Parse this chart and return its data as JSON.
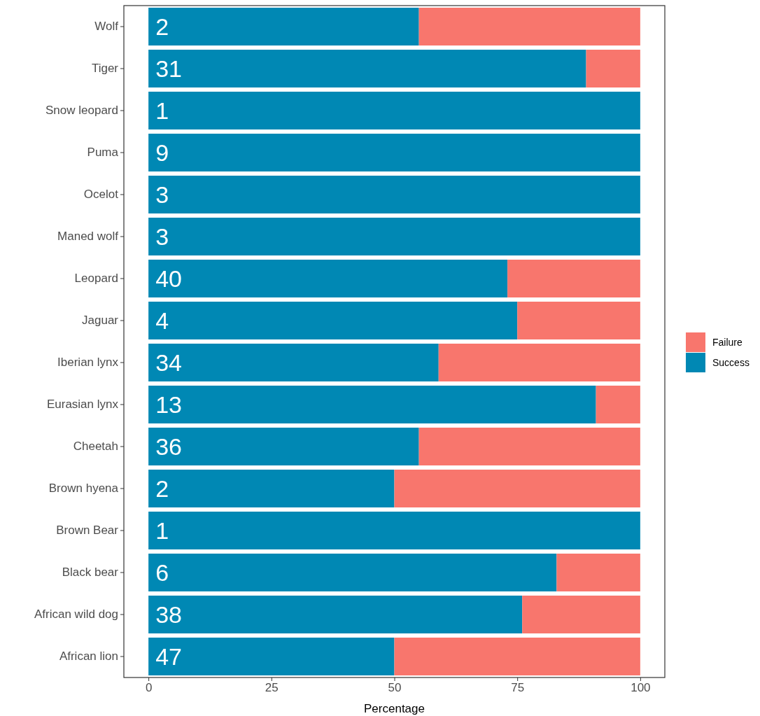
{
  "chart_data": {
    "type": "bar",
    "orientation": "horizontal",
    "stacked": true,
    "xlabel": "Percentage",
    "categories": [
      "Wolf",
      "Tiger",
      "Snow leopard",
      "Puma",
      "Ocelot",
      "Maned wolf",
      "Leopard",
      "Jaguar",
      "Iberian lynx",
      "Eurasian lynx",
      "Cheetah",
      "Brown hyena",
      "Brown Bear",
      "Black bear",
      "African wild dog",
      "African lion"
    ],
    "series": [
      {
        "name": "Success",
        "color": "#0088b4",
        "values": [
          55,
          89,
          100,
          100,
          100,
          100,
          73,
          75,
          59,
          91,
          55,
          50,
          100,
          83,
          76,
          50
        ]
      },
      {
        "name": "Failure",
        "color": "#f8766d",
        "values": [
          45,
          11,
          0,
          0,
          0,
          0,
          27,
          25,
          41,
          9,
          45,
          50,
          0,
          17,
          24,
          50
        ]
      }
    ],
    "xlim": [
      -5,
      105
    ],
    "xticks": [
      0,
      25,
      50,
      75,
      100
    ],
    "grid": false,
    "legend": "right",
    "annotations": [
      {
        "text": "2",
        "y": "Wolf"
      },
      {
        "text": "31",
        "y": "Tiger"
      },
      {
        "text": "1",
        "y": "Snow leopard"
      },
      {
        "text": "9",
        "y": "Puma"
      },
      {
        "text": "3",
        "y": "Ocelot"
      },
      {
        "text": "3",
        "y": "Maned wolf"
      },
      {
        "text": "40",
        "y": "Leopard"
      },
      {
        "text": "4",
        "y": "Jaguar"
      },
      {
        "text": "34",
        "y": "Iberian lynx"
      },
      {
        "text": "13",
        "y": "Eurasian lynx"
      },
      {
        "text": "36",
        "y": "Cheetah"
      },
      {
        "text": "2",
        "y": "Brown hyena"
      },
      {
        "text": "1",
        "y": "Brown Bear"
      },
      {
        "text": "6",
        "y": "Black bear"
      },
      {
        "text": "38",
        "y": "African wild dog"
      },
      {
        "text": "47",
        "y": "African lion"
      }
    ]
  }
}
